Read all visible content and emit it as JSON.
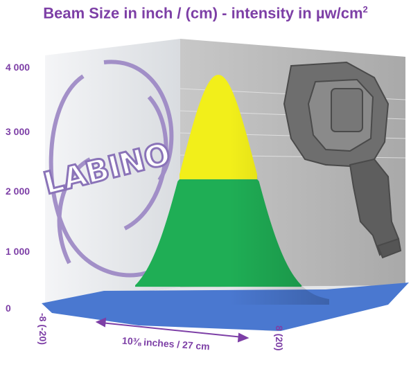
{
  "chart_data": {
    "type": "area",
    "title": "Beam Size in inch / (cm) - intensity in µw/cm",
    "title_superscript": "2",
    "ylim": [
      0,
      4000
    ],
    "y_ticks": [
      "4 000",
      "3 000",
      "2 000",
      "1 000",
      "0"
    ],
    "x_ticks": [
      "-8 (-20)",
      "8 (20)"
    ],
    "span_annotation": "10⅜ inches / 27 cm",
    "x": [
      -8,
      -6,
      -4,
      -2,
      0,
      2,
      4,
      6,
      8
    ],
    "y": [
      60,
      300,
      1200,
      2900,
      3850,
      2900,
      1200,
      300,
      60
    ],
    "bands": [
      {
        "from": 0,
        "to": 300,
        "color": "#4a78d0"
      },
      {
        "from": 300,
        "to": 2100,
        "color": "#1fae55"
      },
      {
        "from": 2100,
        "to": 3850,
        "color": "#f2ef1a"
      }
    ],
    "logo_text": "LABINO",
    "colors": {
      "label": "#7d3fa6",
      "wall": "#bdbdbd",
      "wall_light": "#eef0f2"
    }
  }
}
